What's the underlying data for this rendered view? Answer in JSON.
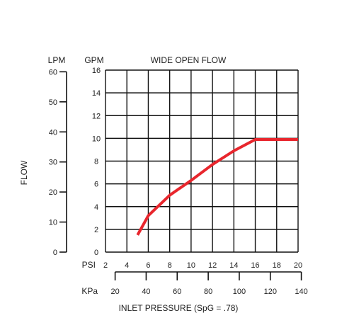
{
  "chart_data": {
    "type": "line",
    "title": "WIDE OPEN FLOW",
    "xlabel": "INLET PRESSURE (SpG = .78)",
    "ylabel": "FLOW",
    "primary_x": {
      "unit_label": "PSI",
      "ticks": [
        "2",
        "4",
        "6",
        "8",
        "10",
        "12",
        "14",
        "16",
        "18",
        "20"
      ],
      "range": [
        2,
        20
      ]
    },
    "secondary_x": {
      "unit_label": "KPa",
      "ticks": [
        "20",
        "40",
        "60",
        "80",
        "100",
        "120",
        "140"
      ]
    },
    "primary_y": {
      "unit_label": "GPM",
      "ticks": [
        "0",
        "2",
        "4",
        "6",
        "8",
        "10",
        "12",
        "14",
        "16"
      ],
      "range": [
        0,
        16
      ]
    },
    "secondary_y": {
      "unit_label": "LPM",
      "ticks": [
        "0",
        "10",
        "20",
        "30",
        "40",
        "50",
        "60"
      ]
    },
    "grid": true,
    "series": [
      {
        "color": "#e8262d",
        "x": [
          5,
          6,
          8,
          10,
          12,
          14,
          16,
          20
        ],
        "y": [
          1.5,
          3.2,
          5.0,
          6.3,
          7.7,
          8.9,
          9.9,
          9.9
        ]
      }
    ]
  }
}
